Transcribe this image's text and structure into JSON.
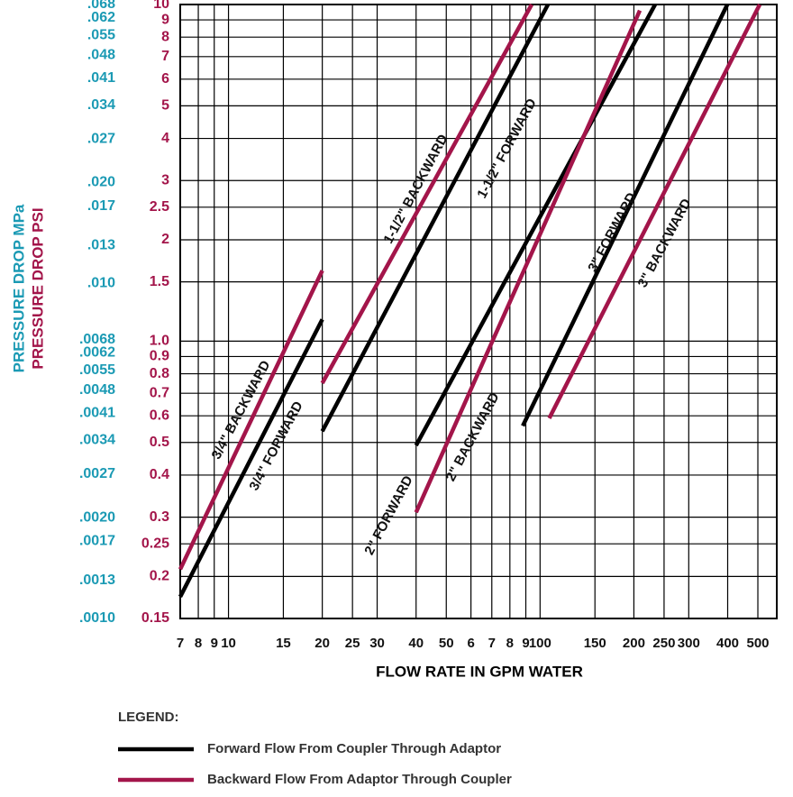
{
  "chart_data": {
    "type": "line",
    "xscale": "log",
    "yscale": "log",
    "y2scale": "log",
    "grid": true,
    "xlabel": "FLOW RATE IN GPM WATER",
    "ylabel": "PRESSURE DROP PSI",
    "y2label": "PRESSURE DROP MPa",
    "xlim": [
      7,
      575
    ],
    "xticks": [
      7,
      8,
      9,
      10,
      15,
      20,
      25,
      30,
      40,
      50,
      {
        "value": 60,
        "label": "6"
      },
      {
        "value": 70,
        "label": "7"
      },
      {
        "value": 80,
        "label": "8"
      },
      {
        "value": 90,
        "label": "9"
      },
      100,
      150,
      200,
      250,
      300,
      400,
      500
    ],
    "ylim": [
      0.15,
      10
    ],
    "yticks": [
      10,
      9,
      8,
      7,
      6,
      5,
      4,
      3,
      2.5,
      2,
      1.5,
      {
        "value": 1,
        "label": "1.0"
      },
      0.9,
      0.8,
      0.7,
      0.6,
      0.5,
      0.4,
      0.3,
      0.25,
      0.2,
      0.15
    ],
    "y2lim": [
      0.001,
      0.068
    ],
    "y2ticks": [
      {
        "value": 0.068,
        "label": ".068"
      },
      {
        "value": 0.062,
        "label": ".062"
      },
      {
        "value": 0.055,
        "label": ".055"
      },
      {
        "value": 0.048,
        "label": ".048"
      },
      {
        "value": 0.041,
        "label": ".041"
      },
      {
        "value": 0.034,
        "label": ".034"
      },
      {
        "value": 0.027,
        "label": ".027"
      },
      {
        "value": 0.02,
        "label": ".020"
      },
      {
        "value": 0.017,
        "label": ".017"
      },
      {
        "value": 0.013,
        "label": ".013"
      },
      {
        "value": 0.01,
        "label": ".010"
      },
      {
        "value": 0.0068,
        "label": ".0068"
      },
      {
        "value": 0.0062,
        "label": ".0062"
      },
      {
        "value": 0.0055,
        "label": ".0055"
      },
      {
        "value": 0.0048,
        "label": ".0048"
      },
      {
        "value": 0.0041,
        "label": ".0041"
      },
      {
        "value": 0.0034,
        "label": ".0034"
      },
      {
        "value": 0.0027,
        "label": ".0027"
      },
      {
        "value": 0.002,
        "label": ".0020"
      },
      {
        "value": 0.0017,
        "label": ".0017"
      },
      {
        "value": 0.0013,
        "label": ".0013"
      },
      {
        "value": 0.001,
        "label": ".0010"
      }
    ],
    "series": [
      {
        "name": "3/4\" FORWARD",
        "color": "#000000",
        "x": [
          7,
          20
        ],
        "values": [
          0.174,
          1.16
        ]
      },
      {
        "name": "3/4\" BACKWARD",
        "color": "#a3154a",
        "x": [
          7,
          20
        ],
        "values": [
          0.21,
          1.62
        ]
      },
      {
        "name": "1-1/2\" FORWARD",
        "color": "#000000",
        "x": [
          20,
          106
        ],
        "values": [
          0.54,
          10
        ]
      },
      {
        "name": "1-1/2\" BACKWARD",
        "color": "#a3154a",
        "x": [
          20,
          94
        ],
        "values": [
          0.75,
          10
        ]
      },
      {
        "name": "2\" FORWARD",
        "color": "#000000",
        "x": [
          40,
          234
        ],
        "values": [
          0.49,
          10
        ]
      },
      {
        "name": "2\" BACKWARD",
        "color": "#a3154a",
        "x": [
          40,
          209
        ],
        "values": [
          0.31,
          9.6
        ]
      },
      {
        "name": "3\" FORWARD",
        "color": "#000000",
        "x": [
          88,
          399
        ],
        "values": [
          0.56,
          10
        ]
      },
      {
        "name": "3\" BACKWARD",
        "color": "#a3154a",
        "x": [
          107,
          507
        ],
        "values": [
          0.59,
          10
        ]
      }
    ],
    "legend": {
      "title": "LEGEND:",
      "items": [
        {
          "label": "Forward Flow From Coupler Through Adaptor",
          "color": "#000000"
        },
        {
          "label": "Backward Flow From Adaptor Through Coupler",
          "color": "#a3154a"
        }
      ]
    }
  }
}
